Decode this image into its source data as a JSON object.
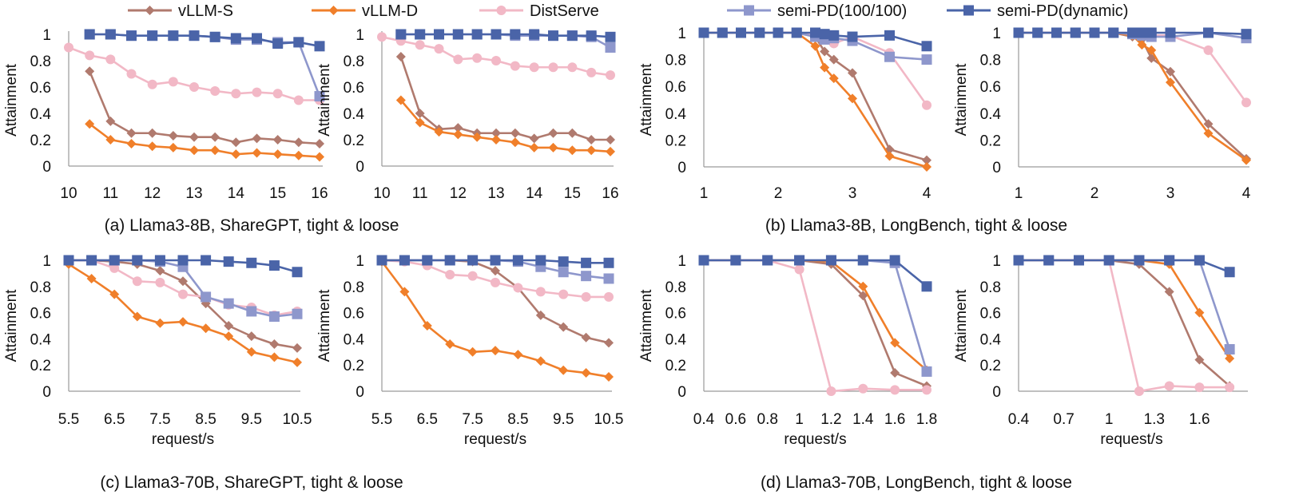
{
  "legend": [
    {
      "key": "vllm_s",
      "label": "vLLM-S",
      "color": "#b07a6e",
      "marker": "diamond"
    },
    {
      "key": "vllm_d",
      "label": "vLLM-D",
      "color": "#f07f2a",
      "marker": "diamond"
    },
    {
      "key": "distserve",
      "label": "DistServe",
      "color": "#f2b8c6",
      "marker": "circle"
    },
    {
      "key": "semi_pd_fixed",
      "label": "semi-PD(100/100)",
      "color": "#8e97cc",
      "marker": "square"
    },
    {
      "key": "semi_pd_dynamic",
      "label": "semi-PD(dynamic)",
      "color": "#4a64a8",
      "marker": "square"
    }
  ],
  "captions": {
    "a": "(a) Llama3-8B, ShareGPT, tight & loose",
    "b": "(b) Llama3-8B, LongBench, tight & loose",
    "c": "(c) Llama3-70B, ShareGPT, tight & loose",
    "d": "(d) Llama3-70B, LongBench, tight & loose"
  },
  "chart_data": [
    {
      "id": "a-tight",
      "type": "line",
      "ylabel": "Attainment",
      "xlabel": "",
      "xlim": [
        10,
        16
      ],
      "ylim": [
        0,
        1
      ],
      "xticks": [
        "10",
        "11",
        "12",
        "13",
        "14",
        "15",
        "16"
      ],
      "yticks": [
        "0",
        "0.2",
        "0.4",
        "0.6",
        "0.8",
        "1"
      ],
      "x": [
        10,
        10.5,
        11,
        11.5,
        12,
        12.5,
        13,
        13.5,
        14,
        14.5,
        15,
        15.5,
        16
      ],
      "series": [
        {
          "key": "vllm_s",
          "name": "vLLM-S",
          "values": [
            null,
            0.72,
            0.34,
            0.25,
            0.25,
            0.23,
            0.22,
            0.22,
            0.18,
            0.21,
            0.2,
            0.18,
            0.17
          ]
        },
        {
          "key": "vllm_d",
          "name": "vLLM-D",
          "values": [
            null,
            0.32,
            0.2,
            0.17,
            0.15,
            0.14,
            0.12,
            0.12,
            0.09,
            0.1,
            0.09,
            0.08,
            0.07
          ]
        },
        {
          "key": "distserve",
          "name": "DistServe",
          "values": [
            0.9,
            0.84,
            0.81,
            0.7,
            0.62,
            0.64,
            0.6,
            0.57,
            0.55,
            0.56,
            0.55,
            0.5,
            0.5
          ]
        },
        {
          "key": "semi_pd_fixed",
          "name": "semi-PD(100/100)",
          "values": [
            null,
            1.0,
            1.0,
            0.99,
            0.99,
            0.99,
            0.99,
            0.98,
            0.96,
            0.96,
            0.94,
            0.94,
            0.53
          ]
        },
        {
          "key": "semi_pd_dynamic",
          "name": "semi-PD(dynamic)",
          "values": [
            null,
            1.0,
            1.0,
            0.99,
            0.99,
            0.99,
            0.99,
            0.98,
            0.97,
            0.97,
            0.93,
            0.94,
            0.91
          ]
        }
      ]
    },
    {
      "id": "a-loose",
      "type": "line",
      "ylabel": "Attainment",
      "xlabel": "",
      "xlim": [
        10,
        16
      ],
      "ylim": [
        0,
        1
      ],
      "xticks": [
        "10",
        "11",
        "12",
        "13",
        "14",
        "15",
        "16"
      ],
      "yticks": [
        "0",
        "0.2",
        "0.4",
        "0.6",
        "0.8",
        "1"
      ],
      "x": [
        10,
        10.5,
        11,
        11.5,
        12,
        12.5,
        13,
        13.5,
        14,
        14.5,
        15,
        15.5,
        16
      ],
      "series": [
        {
          "key": "vllm_s",
          "name": "vLLM-S",
          "values": [
            null,
            0.83,
            0.4,
            0.28,
            0.29,
            0.25,
            0.25,
            0.25,
            0.21,
            0.25,
            0.25,
            0.2,
            0.2
          ]
        },
        {
          "key": "vllm_d",
          "name": "vLLM-D",
          "values": [
            null,
            0.5,
            0.33,
            0.26,
            0.24,
            0.22,
            0.2,
            0.18,
            0.14,
            0.14,
            0.12,
            0.12,
            0.11
          ]
        },
        {
          "key": "distserve",
          "name": "DistServe",
          "values": [
            0.98,
            0.95,
            0.92,
            0.89,
            0.81,
            0.82,
            0.8,
            0.76,
            0.75,
            0.75,
            0.75,
            0.71,
            0.69
          ]
        },
        {
          "key": "semi_pd_fixed",
          "name": "semi-PD(100/100)",
          "values": [
            null,
            1.0,
            1.0,
            1.0,
            1.0,
            1.0,
            1.0,
            0.99,
            0.99,
            0.99,
            0.99,
            0.98,
            0.9
          ]
        },
        {
          "key": "semi_pd_dynamic",
          "name": "semi-PD(dynamic)",
          "values": [
            null,
            1.0,
            1.0,
            1.0,
            1.0,
            1.0,
            1.0,
            1.0,
            1.0,
            0.99,
            0.99,
            0.99,
            0.98
          ]
        }
      ]
    },
    {
      "id": "b-tight",
      "type": "line",
      "ylabel": "Attainment",
      "xlabel": "",
      "xlim": [
        1,
        4
      ],
      "ylim": [
        0,
        1
      ],
      "xticks": [
        "1",
        "2",
        "3",
        "4"
      ],
      "yticks": [
        "0",
        "0.2",
        "0.4",
        "0.6",
        "0.8",
        "1"
      ],
      "x": [
        1,
        1.25,
        1.5,
        1.75,
        2,
        2.25,
        2.5,
        2.625,
        2.75,
        3,
        3.5,
        4
      ],
      "series": [
        {
          "key": "vllm_s",
          "name": "vLLM-S",
          "values": [
            1.0,
            1.0,
            1.0,
            1.0,
            1.0,
            1.0,
            0.97,
            0.86,
            0.8,
            0.7,
            0.13,
            0.05
          ]
        },
        {
          "key": "vllm_d",
          "name": "vLLM-D",
          "values": [
            1.0,
            1.0,
            1.0,
            1.0,
            1.0,
            1.0,
            0.9,
            0.74,
            0.66,
            0.51,
            0.08,
            0.0
          ]
        },
        {
          "key": "distserve",
          "name": "DistServe",
          "values": [
            1.0,
            1.0,
            1.0,
            1.0,
            1.0,
            1.0,
            0.98,
            0.96,
            0.92,
            0.97,
            0.85,
            0.46
          ]
        },
        {
          "key": "semi_pd_fixed",
          "name": "semi-PD(100/100)",
          "values": [
            1.0,
            1.0,
            1.0,
            1.0,
            1.0,
            1.0,
            0.97,
            0.95,
            0.96,
            0.94,
            0.82,
            0.8
          ]
        },
        {
          "key": "semi_pd_dynamic",
          "name": "semi-PD(dynamic)",
          "values": [
            1.0,
            1.0,
            1.0,
            1.0,
            1.0,
            1.0,
            1.0,
            0.99,
            0.98,
            0.97,
            0.98,
            0.9
          ]
        }
      ]
    },
    {
      "id": "b-loose",
      "type": "line",
      "ylabel": "Attainment",
      "xlabel": "",
      "xlim": [
        1,
        4
      ],
      "ylim": [
        0,
        1
      ],
      "xticks": [
        "1",
        "2",
        "3",
        "4"
      ],
      "yticks": [
        "0",
        "0.2",
        "0.4",
        "0.6",
        "0.8",
        "1"
      ],
      "x": [
        1,
        1.25,
        1.5,
        1.75,
        2,
        2.25,
        2.5,
        2.625,
        2.75,
        3,
        3.5,
        4
      ],
      "series": [
        {
          "key": "vllm_s",
          "name": "vLLM-S",
          "values": [
            1.0,
            1.0,
            1.0,
            1.0,
            1.0,
            1.0,
            0.97,
            0.95,
            0.81,
            0.71,
            0.32,
            0.06
          ]
        },
        {
          "key": "vllm_d",
          "name": "vLLM-D",
          "values": [
            1.0,
            1.0,
            1.0,
            1.0,
            1.0,
            1.0,
            0.98,
            0.91,
            0.87,
            0.63,
            0.25,
            0.05
          ]
        },
        {
          "key": "distserve",
          "name": "DistServe",
          "values": [
            1.0,
            1.0,
            1.0,
            1.0,
            1.0,
            1.0,
            1.0,
            1.0,
            0.98,
            0.98,
            0.87,
            0.48
          ]
        },
        {
          "key": "semi_pd_fixed",
          "name": "semi-PD(100/100)",
          "values": [
            1.0,
            1.0,
            1.0,
            1.0,
            1.0,
            1.0,
            0.99,
            0.98,
            0.97,
            0.97,
            1.0,
            0.96
          ]
        },
        {
          "key": "semi_pd_dynamic",
          "name": "semi-PD(dynamic)",
          "values": [
            1.0,
            1.0,
            1.0,
            1.0,
            1.0,
            1.0,
            1.0,
            1.0,
            1.0,
            1.0,
            1.0,
            0.99
          ]
        }
      ]
    },
    {
      "id": "c-tight",
      "type": "line",
      "ylabel": "Attainment",
      "xlabel": "request/s",
      "xlim": [
        5.5,
        10.5
      ],
      "ylim": [
        0,
        1
      ],
      "xticks": [
        "5.5",
        "6.5",
        "7.5",
        "8.5",
        "9.5",
        "10.5"
      ],
      "yticks": [
        "0",
        "0.2",
        "0.4",
        "0.6",
        "0.8",
        "1"
      ],
      "x": [
        5.5,
        6,
        6.5,
        7,
        7.5,
        8,
        8.5,
        9,
        9.5,
        10,
        10.5
      ],
      "series": [
        {
          "key": "vllm_s",
          "name": "vLLM-S",
          "values": [
            1.0,
            1.0,
            0.99,
            0.97,
            0.92,
            0.84,
            0.67,
            0.5,
            0.42,
            0.36,
            0.33
          ]
        },
        {
          "key": "vllm_d",
          "name": "vLLM-D",
          "values": [
            0.97,
            0.86,
            0.74,
            0.57,
            0.52,
            0.53,
            0.48,
            0.42,
            0.3,
            0.26,
            0.22
          ]
        },
        {
          "key": "distserve",
          "name": "DistServe",
          "values": [
            1.0,
            1.0,
            0.94,
            0.84,
            0.83,
            0.74,
            0.72,
            0.66,
            0.64,
            0.58,
            0.61
          ]
        },
        {
          "key": "semi_pd_fixed",
          "name": "semi-PD(100/100)",
          "values": [
            1.0,
            1.0,
            1.0,
            1.0,
            0.99,
            0.95,
            0.72,
            0.67,
            0.61,
            0.57,
            0.59
          ]
        },
        {
          "key": "semi_pd_dynamic",
          "name": "semi-PD(dynamic)",
          "values": [
            1.0,
            1.0,
            1.0,
            1.0,
            1.0,
            1.0,
            1.0,
            0.99,
            0.98,
            0.96,
            0.91
          ]
        }
      ]
    },
    {
      "id": "c-loose",
      "type": "line",
      "ylabel": "Attainment",
      "xlabel": "request/s",
      "xlim": [
        5.5,
        10.5
      ],
      "ylim": [
        0,
        1
      ],
      "xticks": [
        "5.5",
        "6.5",
        "7.5",
        "8.5",
        "9.5",
        "10.5"
      ],
      "yticks": [
        "0",
        "0.2",
        "0.4",
        "0.6",
        "0.8",
        "1"
      ],
      "x": [
        5.5,
        6,
        6.5,
        7,
        7.5,
        8,
        8.5,
        9,
        9.5,
        10,
        10.5
      ],
      "series": [
        {
          "key": "vllm_s",
          "name": "vLLM-S",
          "values": [
            1.0,
            1.0,
            1.0,
            1.0,
            0.99,
            0.92,
            0.79,
            0.58,
            0.49,
            0.41,
            0.37
          ]
        },
        {
          "key": "vllm_d",
          "name": "vLLM-D",
          "values": [
            0.99,
            0.76,
            0.5,
            0.36,
            0.3,
            0.31,
            0.28,
            0.23,
            0.16,
            0.14,
            0.11
          ]
        },
        {
          "key": "distserve",
          "name": "DistServe",
          "values": [
            1.0,
            0.99,
            0.96,
            0.89,
            0.88,
            0.83,
            0.79,
            0.76,
            0.74,
            0.72,
            0.72
          ]
        },
        {
          "key": "semi_pd_fixed",
          "name": "semi-PD(100/100)",
          "values": [
            1.0,
            1.0,
            1.0,
            1.0,
            1.0,
            1.0,
            0.99,
            0.95,
            0.91,
            0.88,
            0.86
          ]
        },
        {
          "key": "semi_pd_dynamic",
          "name": "semi-PD(dynamic)",
          "values": [
            1.0,
            1.0,
            1.0,
            1.0,
            1.0,
            1.0,
            1.0,
            1.0,
            0.99,
            0.98,
            0.98
          ]
        }
      ]
    },
    {
      "id": "d-tight",
      "type": "line",
      "ylabel": "Attainment",
      "xlabel": "request/s",
      "xlim": [
        0.4,
        1.8
      ],
      "ylim": [
        0,
        1
      ],
      "xticks": [
        "0.4",
        "0.6",
        "0.8",
        "1",
        "1.2",
        "1.4",
        "1.6",
        "1.8"
      ],
      "yticks": [
        "0",
        "0.2",
        "0.4",
        "0.6",
        "0.8",
        "1"
      ],
      "x": [
        0.4,
        0.6,
        0.8,
        1.0,
        1.2,
        1.4,
        1.6,
        1.8
      ],
      "series": [
        {
          "key": "vllm_s",
          "name": "vLLM-S",
          "values": [
            1.0,
            1.0,
            1.0,
            1.0,
            0.97,
            0.73,
            0.14,
            0.04
          ]
        },
        {
          "key": "vllm_d",
          "name": "vLLM-D",
          "values": [
            1.0,
            1.0,
            1.0,
            1.0,
            0.99,
            0.8,
            0.37,
            0.16
          ]
        },
        {
          "key": "distserve",
          "name": "DistServe",
          "values": [
            1.0,
            1.0,
            1.0,
            0.93,
            0.0,
            0.02,
            0.01,
            0.01
          ]
        },
        {
          "key": "semi_pd_fixed",
          "name": "semi-PD(100/100)",
          "values": [
            1.0,
            1.0,
            1.0,
            1.0,
            1.0,
            1.0,
            0.98,
            0.15
          ]
        },
        {
          "key": "semi_pd_dynamic",
          "name": "semi-PD(dynamic)",
          "values": [
            1.0,
            1.0,
            1.0,
            1.0,
            1.0,
            1.0,
            1.0,
            0.8
          ]
        }
      ]
    },
    {
      "id": "d-loose",
      "type": "line",
      "ylabel": "Attainment",
      "xlabel": "request/s",
      "xlim": [
        0.4,
        1.9
      ],
      "ylim": [
        0,
        1
      ],
      "xticks": [
        "0.4",
        "0.7",
        "1",
        "1.3",
        "1.6"
      ],
      "yticks": [
        "0",
        "0.2",
        "0.4",
        "0.6",
        "0.8",
        "1"
      ],
      "x": [
        0.4,
        0.6,
        0.8,
        1.0,
        1.2,
        1.4,
        1.6,
        1.8
      ],
      "series": [
        {
          "key": "vllm_s",
          "name": "vLLM-S",
          "values": [
            1.0,
            1.0,
            1.0,
            1.0,
            0.97,
            0.76,
            0.24,
            0.04
          ]
        },
        {
          "key": "vllm_d",
          "name": "vLLM-D",
          "values": [
            1.0,
            1.0,
            1.0,
            1.0,
            1.0,
            0.97,
            0.6,
            0.25
          ]
        },
        {
          "key": "distserve",
          "name": "DistServe",
          "values": [
            1.0,
            1.0,
            1.0,
            1.0,
            0.0,
            0.04,
            0.03,
            0.03
          ]
        },
        {
          "key": "semi_pd_fixed",
          "name": "semi-PD(100/100)",
          "values": [
            1.0,
            1.0,
            1.0,
            1.0,
            1.0,
            1.0,
            1.0,
            0.32
          ]
        },
        {
          "key": "semi_pd_dynamic",
          "name": "semi-PD(dynamic)",
          "values": [
            1.0,
            1.0,
            1.0,
            1.0,
            1.0,
            1.0,
            1.0,
            0.91
          ]
        }
      ]
    }
  ]
}
